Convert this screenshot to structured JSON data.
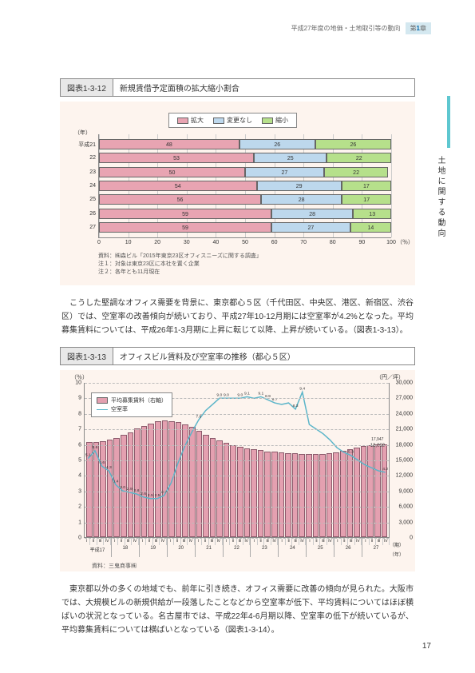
{
  "header": {
    "breadcrumb": "平成27年度の地価・土地取引等の動向",
    "chapter_label": "第",
    "chapter_num": "1",
    "chapter_suffix": "章"
  },
  "side_tab": "土地に関する動向",
  "chart1": {
    "fig_num": "図表1-3-12",
    "fig_name": "新規賃借予定面積の拡大縮小割合",
    "legend": {
      "expand": "拡大",
      "same": "変更なし",
      "shrink": "縮小"
    },
    "y_unit": "（年）",
    "x_unit": "（％）",
    "colors": {
      "expand": "#e8a4b2",
      "same": "#bdd8ed",
      "shrink": "#b6e08b"
    },
    "rows": [
      {
        "year": "平成21",
        "expand": 48,
        "same": 26,
        "shrink": 26
      },
      {
        "year": "22",
        "expand": 53,
        "same": 25,
        "shrink": 22
      },
      {
        "year": "23",
        "expand": 50,
        "same": 27,
        "shrink": 22
      },
      {
        "year": "24",
        "expand": 54,
        "same": 29,
        "shrink": 17
      },
      {
        "year": "25",
        "expand": 56,
        "same": 28,
        "shrink": 17
      },
      {
        "year": "26",
        "expand": 59,
        "same": 28,
        "shrink": 13
      },
      {
        "year": "27",
        "expand": 59,
        "same": 27,
        "shrink": 14
      }
    ],
    "xticks": [
      0,
      10,
      20,
      30,
      40,
      50,
      60,
      70,
      80,
      90,
      100
    ],
    "source1": "資料：㈱森ビル「2015年東京23区オフィスニーズに関する調査」",
    "note1": "注１：対象は東京23区に本社を置く企業",
    "note2": "注２：各年とも11月現在"
  },
  "para1": "　こうした堅調なオフィス需要を背景に、東京都心５区（千代田区、中央区、港区、新宿区、渋谷区）では、空室率の改善傾向が続いており、平成27年10-12月期には空室率が4.2%となった。平均募集賃料については、平成26年1-3月期に上昇に転じて以降、上昇が続いている。（図表1-3-13）。",
  "chart2": {
    "fig_num": "図表1-3-13",
    "fig_name": "オフィスビル賃料及び空室率の推移（都心５区）",
    "y_left_unit": "（％）",
    "y_right_unit": "（円／坪）",
    "legend_bar": "平均募集賃料（右軸）",
    "legend_line": "空室率",
    "bar_color": "#e4a0b0",
    "line_color": "#5bb5c9",
    "y_left_ticks": [
      0,
      1,
      2,
      3,
      4,
      5,
      6,
      7,
      8,
      9,
      10
    ],
    "y_right_ticks": [
      "0",
      "3,000",
      "6,000",
      "9,000",
      "12,000",
      "15,000",
      "18,000",
      "21,000",
      "24,000",
      "27,000",
      "30,000"
    ],
    "y_left_max": 10,
    "y_right_max": 30000,
    "years": [
      "平成17",
      "18",
      "19",
      "20",
      "21",
      "22",
      "23",
      "24",
      "25",
      "26",
      "27"
    ],
    "quarters": [
      "Ⅰ",
      "Ⅱ",
      "Ⅲ",
      "Ⅳ"
    ],
    "x_unit_label_right": "（期）",
    "x_unit_label_bottom": "（年）",
    "bars": [
      18350,
      18400,
      18500,
      18800,
      19200,
      19800,
      20300,
      21000,
      21500,
      22000,
      22400,
      22631,
      22500,
      22200,
      21800,
      21300,
      20500,
      19800,
      19200,
      18700,
      18200,
      17800,
      17500,
      17200,
      17000,
      16800,
      16600,
      16500,
      16400,
      16300,
      16200,
      16150,
      16100,
      16100,
      16100,
      16200,
      16400,
      16700,
      17000,
      17300,
      17600,
      17800,
      17947,
      18000
    ],
    "bar_labels": [
      "",
      "",
      "",
      "",
      "",
      "",
      "",
      "",
      "",
      "",
      "",
      "22,631",
      "",
      "",
      "",
      "",
      "",
      "",
      "",
      "",
      "",
      "",
      "",
      "",
      "",
      "",
      "",
      "",
      "",
      "",
      "",
      "",
      "",
      "",
      "",
      "",
      "",
      "",
      "",
      "",
      "",
      "",
      "17,947",
      ""
    ],
    "line": [
      5.1,
      5.6,
      4.6,
      4.3,
      3.4,
      3.0,
      2.9,
      2.8,
      2.6,
      2.5,
      2.5,
      2.7,
      3.5,
      4.8,
      5.9,
      6.8,
      7.6,
      8.2,
      8.6,
      9.0,
      9.0,
      9.0,
      9.0,
      9.1,
      9.0,
      9.1,
      8.9,
      8.7,
      8.6,
      8.7,
      8.3,
      9.4,
      7.3,
      7.0,
      6.7,
      6.3,
      5.8,
      5.5,
      5.3,
      5.0,
      4.7,
      4.5,
      4.3,
      4.2
    ],
    "line_labels": [
      "5.1",
      "5.6",
      "4.6",
      "4.3",
      "3.4",
      "3.0",
      "2.9",
      "2.8",
      "2.6",
      "2.5",
      "2.5",
      "2.7",
      "",
      "",
      "",
      "",
      "7.6",
      "",
      "",
      "9.0",
      "9.0",
      "",
      "9.0",
      "9.1",
      "",
      "9.1",
      "8.9",
      "8.7",
      "",
      "",
      "8.3",
      "9.4",
      "",
      "",
      "",
      "",
      "",
      "",
      "5.3",
      "",
      "",
      "",
      "",
      "4.2"
    ],
    "highlight_rent": "18,000",
    "source": "資料：三鬼商事㈱"
  },
  "para2": "　東京都以外の多くの地域でも、前年に引き続き、オフィス需要に改善の傾向が見られた。大阪市では、大規模ビルの新規供給が一段落したことなどから空室率が低下、平均賃料についてはほぼ横ばいの状況となっている。名古屋市では、平成22年4-6月期以降、空室率の低下が続いているが、平均募集賃料については横ばいとなっている（図表1-3-14）。",
  "page_number": "17"
}
